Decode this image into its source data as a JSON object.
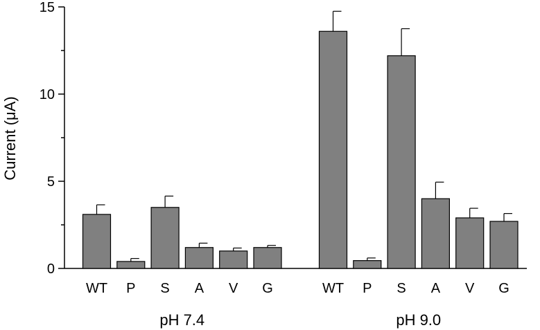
{
  "chart_data": {
    "type": "bar",
    "title": "",
    "xlabel": "",
    "ylabel": "Current (μA)",
    "ylim": [
      0,
      15
    ],
    "yticks": [
      0,
      5,
      10,
      15
    ],
    "grid": false,
    "bar_color": "#808080",
    "groups": [
      {
        "label": "pH 7.4",
        "bars": [
          {
            "category": "WT",
            "value": 3.1,
            "error": 0.55
          },
          {
            "category": "P",
            "value": 0.4,
            "error": 0.17
          },
          {
            "category": "S",
            "value": 3.5,
            "error": 0.65
          },
          {
            "category": "A",
            "value": 1.2,
            "error": 0.25
          },
          {
            "category": "V",
            "value": 1.0,
            "error": 0.17
          },
          {
            "category": "G",
            "value": 1.2,
            "error": 0.12
          }
        ]
      },
      {
        "label": "pH 9.0",
        "bars": [
          {
            "category": "WT",
            "value": 13.6,
            "error": 1.15
          },
          {
            "category": "P",
            "value": 0.45,
            "error": 0.15
          },
          {
            "category": "S",
            "value": 12.2,
            "error": 1.55
          },
          {
            "category": "A",
            "value": 4.0,
            "error": 0.95
          },
          {
            "category": "V",
            "value": 2.9,
            "error": 0.55
          },
          {
            "category": "G",
            "value": 2.7,
            "error": 0.45
          }
        ]
      }
    ]
  }
}
